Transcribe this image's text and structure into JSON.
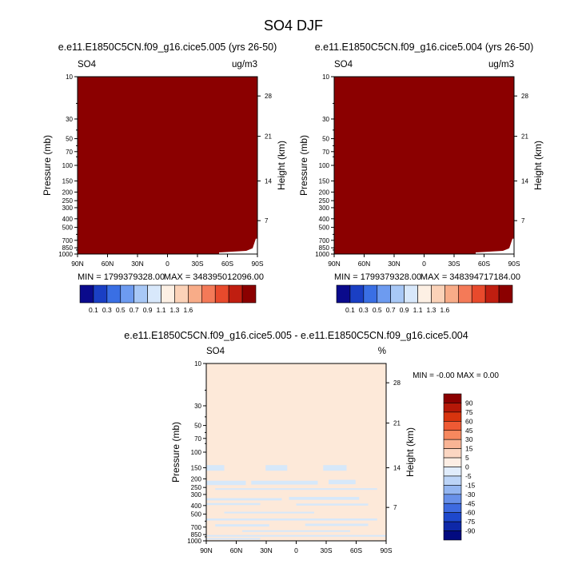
{
  "figure": {
    "title": "SO4 DJF"
  },
  "colors": {
    "diff_zero_fill": "#fde9d9",
    "diff_neg_fill": "#d6e8fa"
  },
  "chart_data": [
    {
      "type": "heatmap",
      "title": "e.e11.E1850C5CN.f09_g16.cice5.005 (yrs 26-50)",
      "left_label": "SO4",
      "right_label": "ug/m3",
      "ylabel": "Pressure (mb)",
      "ylabel_right": "Height (km)",
      "x_ticks": [
        "90N",
        "60N",
        "30N",
        "0",
        "30S",
        "60S",
        "90S"
      ],
      "y_ticks": [
        "10",
        "30",
        "50",
        "70",
        "100",
        "150",
        "200",
        "250",
        "300",
        "400",
        "500",
        "700",
        "850",
        "1000"
      ],
      "height_ticks": [
        "28",
        "21",
        "14",
        "7"
      ],
      "ylim": [
        1000,
        10
      ],
      "y_scale": "log",
      "min_text": "MIN = 1799379328.00",
      "max_text": "MAX = 348395012096.00",
      "field_color": "#8b0000",
      "missing_region": "lower-right (near 90S, 700-1000 mb)",
      "colorbar": {
        "orientation": "horizontal",
        "colors": [
          "#0a0a8c",
          "#1a3fc4",
          "#3a6fe4",
          "#6d9bf0",
          "#a8c8f6",
          "#d8e8fb",
          "#fdf0e4",
          "#fbd2b8",
          "#f8ac88",
          "#f47a58",
          "#e84a2c",
          "#c01e10",
          "#8b0000"
        ],
        "labels": [
          "0.1",
          "0.3",
          "0.5",
          "0.7",
          "0.9",
          "1.1",
          "1.3",
          "1.6"
        ]
      }
    },
    {
      "type": "heatmap",
      "title": "e.e11.E1850C5CN.f09_g16.cice5.004 (yrs 26-50)",
      "left_label": "SO4",
      "right_label": "ug/m3",
      "ylabel": "Pressure (mb)",
      "ylabel_right": "Height (km)",
      "x_ticks": [
        "90N",
        "60N",
        "30N",
        "0",
        "30S",
        "60S",
        "90S"
      ],
      "y_ticks": [
        "10",
        "30",
        "50",
        "70",
        "100",
        "150",
        "200",
        "250",
        "300",
        "400",
        "500",
        "700",
        "850",
        "1000"
      ],
      "height_ticks": [
        "28",
        "21",
        "14",
        "7"
      ],
      "ylim": [
        1000,
        10
      ],
      "y_scale": "log",
      "min_text": "MIN = 1799379328.00",
      "max_text": "MAX = 348394717184.00",
      "field_color": "#8b0000",
      "missing_region": "lower-right (near 90S, 700-1000 mb)",
      "colorbar": {
        "orientation": "horizontal",
        "colors": [
          "#0a0a8c",
          "#1a3fc4",
          "#3a6fe4",
          "#6d9bf0",
          "#a8c8f6",
          "#d8e8fb",
          "#fdf0e4",
          "#fbd2b8",
          "#f8ac88",
          "#f47a58",
          "#e84a2c",
          "#c01e10",
          "#8b0000"
        ],
        "labels": [
          "0.1",
          "0.3",
          "0.5",
          "0.7",
          "0.9",
          "1.1",
          "1.3",
          "1.6"
        ]
      }
    },
    {
      "type": "heatmap",
      "title": "e.e11.E1850C5CN.f09_g16.cice5.005 - e.e11.E1850C5CN.f09_g16.cice5.004",
      "left_label": "SO4",
      "right_label": "%",
      "ylabel": "Pressure (mb)",
      "ylabel_right": "Height (km)",
      "x_ticks": [
        "90N",
        "60N",
        "30N",
        "0",
        "30S",
        "60S",
        "90S"
      ],
      "y_ticks": [
        "10",
        "30",
        "50",
        "70",
        "100",
        "150",
        "200",
        "250",
        "300",
        "400",
        "500",
        "700",
        "850",
        "1000"
      ],
      "height_ticks": [
        "28",
        "21",
        "14",
        "7"
      ],
      "ylim": [
        1000,
        10
      ],
      "y_scale": "log",
      "minmax_text": "MIN =  -0.00  MAX =   0.00",
      "field_color": "#fde9d9",
      "negative_patch_color": "#d6e8fa",
      "colorbar": {
        "orientation": "vertical",
        "colors": [
          "#8b0000",
          "#b51808",
          "#d8340e",
          "#ee5a34",
          "#f6885e",
          "#f9b495",
          "#fbd6c2",
          "#fdeee4",
          "#e0ecfb",
          "#bcd4f7",
          "#94b6f1",
          "#6890e9",
          "#3e6ae0",
          "#1e48cc",
          "#0e28a8",
          "#020a80"
        ],
        "labels": [
          "90",
          "75",
          "60",
          "45",
          "30",
          "15",
          "5",
          "0",
          "-5",
          "-15",
          "-30",
          "-45",
          "-60",
          "-75",
          "-90"
        ]
      }
    }
  ]
}
